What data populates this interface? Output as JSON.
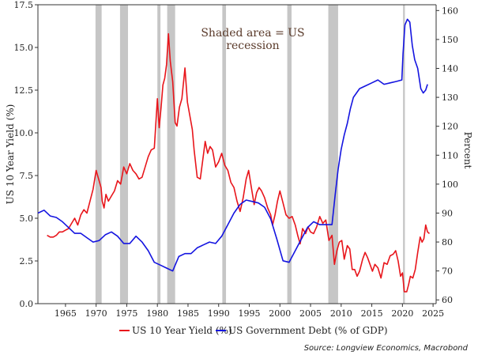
{
  "chart_data": {
    "type": "line",
    "title": "",
    "annotation": [
      "Shaded area = US",
      "recession"
    ],
    "left_axis_label": "US 10 Year Yield (%)",
    "right_axis_label": "Percent",
    "left_ylim": [
      0,
      17.5
    ],
    "right_ylim": [
      58.7,
      162
    ],
    "left_ticks": [
      "0.0",
      "2.5",
      "5.0",
      "7.5",
      "10.0",
      "12.5",
      "15.0",
      "17.5"
    ],
    "right_ticks": [
      "60",
      "70",
      "80",
      "90",
      "100",
      "110",
      "120",
      "130",
      "140",
      "150",
      "160"
    ],
    "x_ticks": [
      "1965",
      "1970",
      "1975",
      "1980",
      "1985",
      "1990",
      "1995",
      "2000",
      "2005",
      "2010",
      "2015",
      "2020",
      "2025"
    ],
    "xlim": [
      1960.5,
      2025.5
    ],
    "grid": false,
    "legend_position": "bottom",
    "source": "Source: Longview Economics, Macrobond",
    "recessions": [
      [
        1969.9,
        1970.9
      ],
      [
        1973.9,
        1975.2
      ],
      [
        1980.0,
        1980.5
      ],
      [
        1981.6,
        1982.9
      ],
      [
        1990.6,
        1991.2
      ],
      [
        2001.2,
        2001.9
      ],
      [
        2007.9,
        2009.5
      ],
      [
        2020.1,
        2020.4
      ]
    ],
    "series": [
      {
        "name": "US 10 Year Yield (%)",
        "axis": "left",
        "color": "#e8151b",
        "points": [
          [
            1962.0,
            4.0
          ],
          [
            1962.5,
            3.9
          ],
          [
            1963.0,
            3.9
          ],
          [
            1963.5,
            4.0
          ],
          [
            1964.0,
            4.2
          ],
          [
            1964.5,
            4.2
          ],
          [
            1965.0,
            4.3
          ],
          [
            1965.5,
            4.4
          ],
          [
            1966.0,
            4.7
          ],
          [
            1966.5,
            5.0
          ],
          [
            1967.0,
            4.6
          ],
          [
            1967.5,
            5.2
          ],
          [
            1968.0,
            5.5
          ],
          [
            1968.5,
            5.3
          ],
          [
            1969.0,
            6.0
          ],
          [
            1969.5,
            6.7
          ],
          [
            1970.0,
            7.8
          ],
          [
            1970.4,
            7.3
          ],
          [
            1970.8,
            6.8
          ],
          [
            1971.0,
            6.0
          ],
          [
            1971.3,
            5.6
          ],
          [
            1971.6,
            6.4
          ],
          [
            1972.0,
            6.0
          ],
          [
            1972.5,
            6.3
          ],
          [
            1973.0,
            6.6
          ],
          [
            1973.5,
            7.2
          ],
          [
            1974.0,
            7.0
          ],
          [
            1974.5,
            8.0
          ],
          [
            1975.0,
            7.6
          ],
          [
            1975.5,
            8.2
          ],
          [
            1976.0,
            7.8
          ],
          [
            1976.5,
            7.6
          ],
          [
            1977.0,
            7.3
          ],
          [
            1977.5,
            7.4
          ],
          [
            1978.0,
            8.0
          ],
          [
            1978.5,
            8.6
          ],
          [
            1979.0,
            9.0
          ],
          [
            1979.5,
            9.1
          ],
          [
            1980.0,
            12.0
          ],
          [
            1980.3,
            10.3
          ],
          [
            1980.6,
            11.5
          ],
          [
            1980.9,
            12.8
          ],
          [
            1981.2,
            13.2
          ],
          [
            1981.5,
            14.0
          ],
          [
            1981.8,
            15.8
          ],
          [
            1982.1,
            14.2
          ],
          [
            1982.5,
            13.0
          ],
          [
            1982.9,
            10.6
          ],
          [
            1983.2,
            10.4
          ],
          [
            1983.6,
            11.5
          ],
          [
            1984.0,
            12.0
          ],
          [
            1984.5,
            13.8
          ],
          [
            1984.9,
            11.8
          ],
          [
            1985.3,
            11.0
          ],
          [
            1985.7,
            10.2
          ],
          [
            1986.0,
            9.0
          ],
          [
            1986.5,
            7.4
          ],
          [
            1987.0,
            7.3
          ],
          [
            1987.4,
            8.4
          ],
          [
            1987.8,
            9.5
          ],
          [
            1988.2,
            8.8
          ],
          [
            1988.6,
            9.2
          ],
          [
            1989.0,
            9.0
          ],
          [
            1989.5,
            8.0
          ],
          [
            1990.0,
            8.3
          ],
          [
            1990.5,
            8.8
          ],
          [
            1991.0,
            8.1
          ],
          [
            1991.5,
            7.8
          ],
          [
            1992.0,
            7.1
          ],
          [
            1992.5,
            6.8
          ],
          [
            1993.0,
            6.0
          ],
          [
            1993.5,
            5.4
          ],
          [
            1994.0,
            6.2
          ],
          [
            1994.5,
            7.3
          ],
          [
            1994.9,
            7.8
          ],
          [
            1995.3,
            6.9
          ],
          [
            1995.8,
            5.8
          ],
          [
            1996.2,
            6.5
          ],
          [
            1996.6,
            6.8
          ],
          [
            1997.0,
            6.6
          ],
          [
            1997.5,
            6.2
          ],
          [
            1998.0,
            5.6
          ],
          [
            1998.5,
            5.2
          ],
          [
            1998.8,
            4.6
          ],
          [
            1999.2,
            5.2
          ],
          [
            1999.6,
            6.0
          ],
          [
            2000.0,
            6.6
          ],
          [
            2000.5,
            5.9
          ],
          [
            2001.0,
            5.2
          ],
          [
            2001.5,
            5.0
          ],
          [
            2002.0,
            5.1
          ],
          [
            2002.5,
            4.6
          ],
          [
            2002.9,
            4.0
          ],
          [
            2003.3,
            3.5
          ],
          [
            2003.7,
            4.4
          ],
          [
            2004.2,
            4.1
          ],
          [
            2004.6,
            4.5
          ],
          [
            2005.0,
            4.2
          ],
          [
            2005.5,
            4.1
          ],
          [
            2006.0,
            4.5
          ],
          [
            2006.5,
            5.1
          ],
          [
            2007.0,
            4.7
          ],
          [
            2007.5,
            4.9
          ],
          [
            2008.0,
            3.7
          ],
          [
            2008.5,
            4.0
          ],
          [
            2008.9,
            2.3
          ],
          [
            2009.3,
            3.1
          ],
          [
            2009.7,
            3.6
          ],
          [
            2010.1,
            3.7
          ],
          [
            2010.5,
            2.6
          ],
          [
            2011.0,
            3.4
          ],
          [
            2011.4,
            3.2
          ],
          [
            2011.8,
            2.0
          ],
          [
            2012.2,
            2.0
          ],
          [
            2012.6,
            1.6
          ],
          [
            2013.0,
            1.9
          ],
          [
            2013.5,
            2.6
          ],
          [
            2013.9,
            3.0
          ],
          [
            2014.3,
            2.7
          ],
          [
            2014.7,
            2.3
          ],
          [
            2015.1,
            1.9
          ],
          [
            2015.5,
            2.3
          ],
          [
            2016.0,
            2.1
          ],
          [
            2016.5,
            1.5
          ],
          [
            2017.0,
            2.4
          ],
          [
            2017.5,
            2.3
          ],
          [
            2018.0,
            2.8
          ],
          [
            2018.5,
            2.9
          ],
          [
            2018.9,
            3.1
          ],
          [
            2019.3,
            2.5
          ],
          [
            2019.7,
            1.6
          ],
          [
            2020.0,
            1.8
          ],
          [
            2020.3,
            0.7
          ],
          [
            2020.7,
            0.7
          ],
          [
            2021.0,
            1.1
          ],
          [
            2021.3,
            1.6
          ],
          [
            2021.7,
            1.5
          ],
          [
            2022.1,
            2.0
          ],
          [
            2022.5,
            3.0
          ],
          [
            2022.9,
            3.9
          ],
          [
            2023.2,
            3.6
          ],
          [
            2023.5,
            3.8
          ],
          [
            2023.8,
            4.6
          ],
          [
            2024.1,
            4.2
          ],
          [
            2024.4,
            4.1
          ]
        ]
      },
      {
        "name": "US Government Debt (% of GDP)",
        "axis": "right",
        "color": "#1414e0",
        "points": [
          [
            1960.5,
            90.0
          ],
          [
            1961.5,
            91.0
          ],
          [
            1962.5,
            89.0
          ],
          [
            1963.5,
            88.5
          ],
          [
            1964.5,
            87.0
          ],
          [
            1965.5,
            85.0
          ],
          [
            1966.5,
            83.0
          ],
          [
            1967.5,
            83.0
          ],
          [
            1968.5,
            81.5
          ],
          [
            1969.5,
            80.0
          ],
          [
            1970.5,
            80.5
          ],
          [
            1971.5,
            82.5
          ],
          [
            1972.5,
            83.5
          ],
          [
            1973.5,
            82.0
          ],
          [
            1974.5,
            79.5
          ],
          [
            1975.5,
            79.5
          ],
          [
            1976.5,
            82.0
          ],
          [
            1977.5,
            80.0
          ],
          [
            1978.5,
            77.0
          ],
          [
            1979.5,
            73.0
          ],
          [
            1980.5,
            72.0
          ],
          [
            1981.5,
            71.0
          ],
          [
            1982.5,
            70.0
          ],
          [
            1983.5,
            75.0
          ],
          [
            1984.5,
            76.0
          ],
          [
            1985.5,
            76.0
          ],
          [
            1986.5,
            78.0
          ],
          [
            1987.5,
            79.0
          ],
          [
            1988.5,
            80.0
          ],
          [
            1989.5,
            79.5
          ],
          [
            1990.5,
            82.0
          ],
          [
            1991.5,
            86.0
          ],
          [
            1992.5,
            90.0
          ],
          [
            1993.5,
            93.0
          ],
          [
            1994.5,
            94.5
          ],
          [
            1995.5,
            94.0
          ],
          [
            1996.5,
            93.5
          ],
          [
            1997.5,
            92.0
          ],
          [
            1998.5,
            88.0
          ],
          [
            1999.5,
            81.0
          ],
          [
            2000.5,
            73.5
          ],
          [
            2001.5,
            73.0
          ],
          [
            2002.5,
            77.0
          ],
          [
            2003.5,
            81.0
          ],
          [
            2004.5,
            85.0
          ],
          [
            2005.5,
            87.0
          ],
          [
            2006.5,
            86.0
          ],
          [
            2007.5,
            86.0
          ],
          [
            2008.5,
            86.0
          ],
          [
            2009.0,
            96.0
          ],
          [
            2009.5,
            105.0
          ],
          [
            2010.0,
            112.0
          ],
          [
            2010.5,
            117.0
          ],
          [
            2011.0,
            121.0
          ],
          [
            2011.5,
            126.0
          ],
          [
            2012.0,
            130.0
          ],
          [
            2013.0,
            133.0
          ],
          [
            2014.0,
            134.0
          ],
          [
            2015.0,
            135.0
          ],
          [
            2016.0,
            136.0
          ],
          [
            2017.0,
            134.5
          ],
          [
            2018.0,
            135.0
          ],
          [
            2019.0,
            135.5
          ],
          [
            2019.9,
            136.0
          ],
          [
            2020.1,
            145.0
          ],
          [
            2020.4,
            155.0
          ],
          [
            2020.8,
            157.0
          ],
          [
            2021.2,
            156.0
          ],
          [
            2021.6,
            148.0
          ],
          [
            2022.0,
            143.0
          ],
          [
            2022.5,
            140.0
          ],
          [
            2023.0,
            133.0
          ],
          [
            2023.4,
            131.5
          ],
          [
            2023.8,
            132.5
          ],
          [
            2024.1,
            134.5
          ]
        ]
      }
    ]
  }
}
